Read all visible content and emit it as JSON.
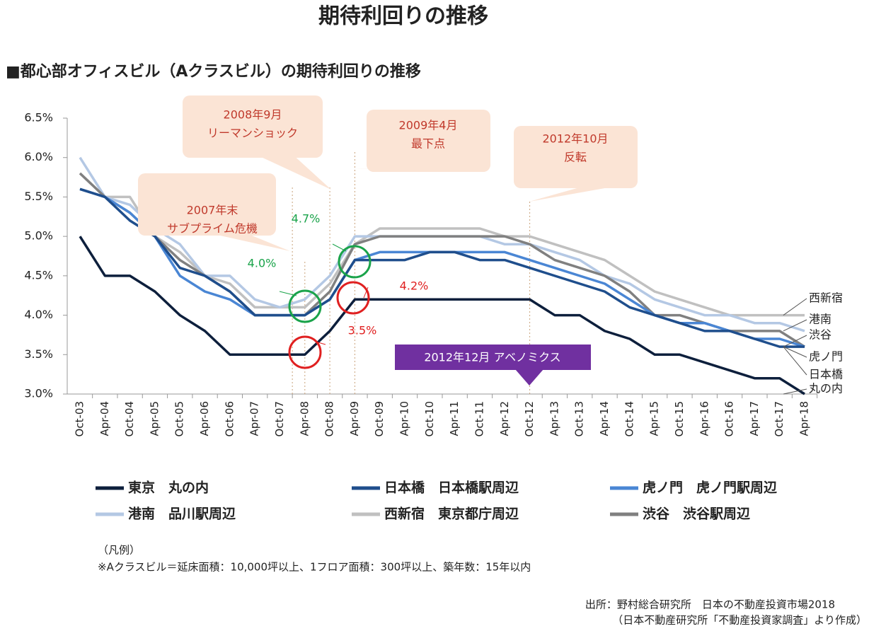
{
  "title": "期待利回りの推移",
  "chart_data": {
    "type": "line",
    "title": "■都心部オフィスビル（Aクラスビル）の期待利回りの推移",
    "categories": [
      "Oct-03",
      "Apr-04",
      "Oct-04",
      "Apr-05",
      "Oct-05",
      "Apr-06",
      "Oct-06",
      "Apr-07",
      "Oct-07",
      "Apr-08",
      "Oct-08",
      "Apr-09",
      "Oct-09",
      "Apr-10",
      "Oct-10",
      "Apr-11",
      "Oct-11",
      "Apr-12",
      "Oct-12",
      "Apr-13",
      "Oct-13",
      "Apr-14",
      "Oct-14",
      "Apr-15",
      "Oct-15",
      "Apr-16",
      "Oct-16",
      "Apr-17",
      "Oct-17",
      "Apr-18"
    ],
    "ylim": [
      3.0,
      6.5
    ],
    "yticks": [
      {
        "value": 3.0,
        "label": "3.0%"
      },
      {
        "value": 3.5,
        "label": "3.5%"
      },
      {
        "value": 4.0,
        "label": "4.0%"
      },
      {
        "value": 4.5,
        "label": "4.5%"
      },
      {
        "value": 5.0,
        "label": "5.0%"
      },
      {
        "value": 5.5,
        "label": "5.5%"
      },
      {
        "value": 6.0,
        "label": "6.0%"
      },
      {
        "value": 6.5,
        "label": "6.5%"
      }
    ],
    "series": [
      {
        "name": "東京　丸の内",
        "short": "丸の内",
        "color": "#0d1f3c",
        "values": [
          5.0,
          4.5,
          4.5,
          4.3,
          4.0,
          3.8,
          3.5,
          3.5,
          3.5,
          3.5,
          3.8,
          4.2,
          4.2,
          4.2,
          4.2,
          4.2,
          4.2,
          4.2,
          4.2,
          4.0,
          4.0,
          3.8,
          3.7,
          3.5,
          3.5,
          3.4,
          3.3,
          3.2,
          3.2,
          3.0
        ]
      },
      {
        "name": "日本橋　日本橋駅周辺",
        "short": "日本橋",
        "color": "#1f4e8c",
        "values": [
          5.6,
          5.5,
          5.2,
          5.0,
          4.6,
          4.5,
          4.3,
          4.0,
          4.0,
          4.0,
          4.2,
          4.7,
          4.7,
          4.7,
          4.8,
          4.8,
          4.7,
          4.7,
          4.6,
          4.5,
          4.4,
          4.3,
          4.1,
          4.0,
          3.9,
          3.8,
          3.8,
          3.7,
          3.6,
          3.6
        ]
      },
      {
        "name": "虎ノ門　虎ノ門駅周辺",
        "short": "虎ノ門",
        "color": "#4a86d4",
        "values": [
          5.6,
          5.5,
          5.3,
          5.0,
          4.5,
          4.3,
          4.2,
          4.0,
          4.0,
          4.0,
          4.2,
          4.7,
          4.8,
          4.8,
          4.8,
          4.8,
          4.8,
          4.8,
          4.7,
          4.6,
          4.5,
          4.4,
          4.2,
          4.0,
          3.9,
          3.9,
          3.8,
          3.7,
          3.7,
          3.6
        ]
      },
      {
        "name": "港南　品川駅周辺",
        "short": "港南",
        "color": "#b4c8e4",
        "values": [
          6.0,
          5.5,
          5.4,
          5.1,
          4.9,
          4.5,
          4.5,
          4.2,
          4.1,
          4.2,
          4.5,
          5.0,
          5.0,
          5.0,
          5.0,
          5.0,
          5.0,
          4.9,
          4.9,
          4.8,
          4.7,
          4.5,
          4.4,
          4.2,
          4.1,
          4.0,
          4.0,
          3.9,
          3.9,
          3.8
        ]
      },
      {
        "name": "西新宿　東京都庁周辺",
        "short": "西新宿",
        "color": "#c0c0c0",
        "values": [
          5.8,
          5.5,
          5.5,
          5.0,
          4.8,
          4.5,
          4.4,
          4.1,
          4.1,
          4.1,
          4.4,
          4.9,
          5.1,
          5.1,
          5.1,
          5.1,
          5.1,
          5.0,
          5.0,
          4.9,
          4.8,
          4.7,
          4.5,
          4.3,
          4.2,
          4.1,
          4.0,
          4.0,
          4.0,
          4.0
        ]
      },
      {
        "name": "渋谷　渋谷駅周辺",
        "short": "渋谷",
        "color": "#808080",
        "values": [
          5.8,
          5.5,
          5.3,
          5.0,
          4.7,
          4.5,
          4.3,
          4.0,
          4.0,
          4.0,
          4.3,
          4.9,
          5.0,
          5.0,
          5.0,
          5.0,
          5.0,
          5.0,
          4.9,
          4.7,
          4.6,
          4.5,
          4.3,
          4.0,
          4.0,
          3.9,
          3.8,
          3.8,
          3.8,
          3.6
        ]
      }
    ],
    "callouts": [
      [
        "2007年末",
        "サブプライム危機"
      ],
      [
        "2008年9月",
        "リーマンショック"
      ],
      [
        "2009年4月",
        "最下点"
      ],
      [
        "2012年10月",
        "反転"
      ]
    ],
    "highlight": "2012年12月  アベノミクス",
    "circle_labels": [
      "4.0%",
      "4.7%",
      "3.5%",
      "4.2%"
    ]
  },
  "notes": [
    "（凡例）",
    "※Aクラスビル＝延床面積：10,000坪以上、1フロア面積：300坪以上、築年数：15年以内"
  ],
  "source": [
    "出所：野村総合研究所　日本の不動産投資市場2018",
    "（日本不動産研究所「不動産投資家調査」より作成）"
  ]
}
